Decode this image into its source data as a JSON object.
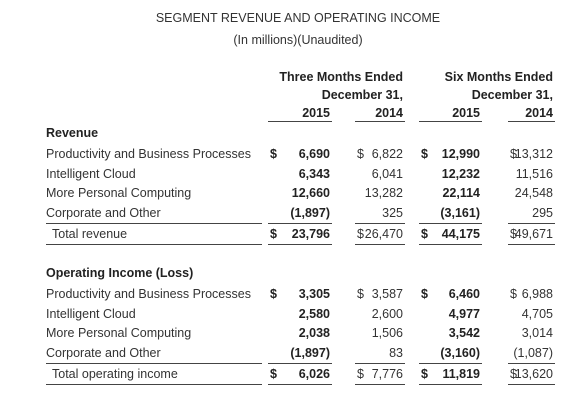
{
  "header": {
    "title": "SEGMENT REVENUE AND OPERATING INCOME",
    "subtitle": "(In millions)(Unaudited)"
  },
  "column_groups": [
    {
      "lines": [
        "Three Months Ended",
        "December 31,"
      ],
      "years": [
        "2015",
        "2014"
      ]
    },
    {
      "lines": [
        "Six Months Ended",
        "December 31,"
      ],
      "years": [
        "2015",
        "2014"
      ]
    }
  ],
  "sections": [
    {
      "title": "Revenue",
      "rows": [
        {
          "label": "Productivity and Business Processes",
          "cells": [
            {
              "sign": "$",
              "text": "6,690"
            },
            {
              "sign": "$",
              "text": "6,822"
            },
            {
              "sign": "$",
              "text": "12,990"
            },
            {
              "sign": "$",
              "text": "13,312"
            }
          ]
        },
        {
          "label": "Intelligent Cloud",
          "cells": [
            {
              "text": "6,343"
            },
            {
              "text": "6,041"
            },
            {
              "text": "12,232"
            },
            {
              "text": "11,516"
            }
          ]
        },
        {
          "label": "More Personal Computing",
          "cells": [
            {
              "text": "12,660"
            },
            {
              "text": "13,282"
            },
            {
              "text": "22,114"
            },
            {
              "text": "24,548"
            }
          ]
        },
        {
          "label": "Corporate and Other",
          "cells": [
            {
              "text": "(1,897)"
            },
            {
              "text": "325"
            },
            {
              "text": "(3,161)"
            },
            {
              "text": "295"
            }
          ]
        }
      ],
      "total": {
        "label": "Total revenue",
        "cells": [
          {
            "sign": "$",
            "text": "23,796"
          },
          {
            "sign": "$",
            "text": "26,470"
          },
          {
            "sign": "$",
            "text": "44,175"
          },
          {
            "sign": "$",
            "text": "49,671"
          }
        ]
      }
    },
    {
      "title": "Operating Income (Loss)",
      "rows": [
        {
          "label": "Productivity and Business Processes",
          "cells": [
            {
              "sign": "$",
              "text": "3,305"
            },
            {
              "sign": "$",
              "text": "3,587"
            },
            {
              "sign": "$",
              "text": "6,460"
            },
            {
              "sign": "$",
              "text": "6,988"
            }
          ]
        },
        {
          "label": "Intelligent Cloud",
          "cells": [
            {
              "text": "2,580"
            },
            {
              "text": "2,600"
            },
            {
              "text": "4,977"
            },
            {
              "text": "4,705"
            }
          ]
        },
        {
          "label": "More Personal Computing",
          "cells": [
            {
              "text": "2,038"
            },
            {
              "text": "1,506"
            },
            {
              "text": "3,542"
            },
            {
              "text": "3,014"
            }
          ]
        },
        {
          "label": "Corporate and Other",
          "cells": [
            {
              "text": "(1,897)"
            },
            {
              "text": "83"
            },
            {
              "text": "(3,160)"
            },
            {
              "text": "(1,087)"
            }
          ]
        }
      ],
      "total": {
        "label": "Total operating income",
        "cells": [
          {
            "sign": "$",
            "text": "6,026"
          },
          {
            "sign": "$",
            "text": "7,776"
          },
          {
            "sign": "$",
            "text": "11,819"
          },
          {
            "sign": "$",
            "text": "13,620"
          }
        ]
      }
    }
  ]
}
